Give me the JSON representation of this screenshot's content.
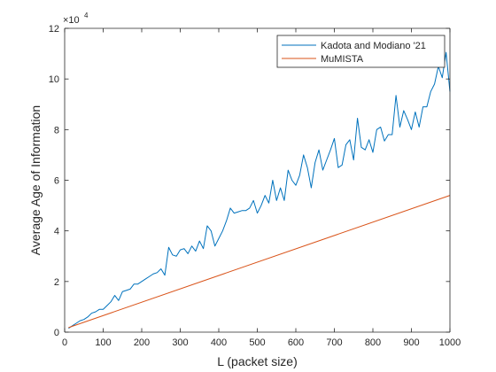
{
  "chart_data": {
    "type": "line",
    "xlabel": "L (packet size)",
    "ylabel": "Average Age of Information",
    "xlim": [
      0,
      1000
    ],
    "ylim": [
      0,
      120000
    ],
    "y_multiplier_label": "×10",
    "y_multiplier_exponent": "4",
    "x_ticks": [
      0,
      100,
      200,
      300,
      400,
      500,
      600,
      700,
      800,
      900,
      1000
    ],
    "y_ticks": [
      0,
      20000,
      40000,
      60000,
      80000,
      100000,
      120000
    ],
    "x_tick_labels": [
      "0",
      "100",
      "200",
      "300",
      "400",
      "500",
      "600",
      "700",
      "800",
      "900",
      "1000"
    ],
    "y_tick_labels": [
      "0",
      "2",
      "4",
      "6",
      "8",
      "10",
      "12"
    ],
    "grid": false,
    "legend_position": "top-right",
    "series": [
      {
        "name": "Kadota and Modiano '21",
        "color": "#0072BD",
        "x": [
          10,
          20,
          30,
          40,
          50,
          60,
          70,
          80,
          90,
          100,
          110,
          120,
          130,
          140,
          150,
          160,
          170,
          180,
          190,
          200,
          210,
          220,
          230,
          240,
          250,
          260,
          270,
          280,
          290,
          300,
          310,
          320,
          330,
          340,
          350,
          360,
          370,
          380,
          390,
          400,
          410,
          420,
          430,
          440,
          450,
          460,
          470,
          480,
          490,
          500,
          510,
          520,
          530,
          540,
          550,
          560,
          570,
          580,
          590,
          600,
          610,
          620,
          630,
          640,
          650,
          660,
          670,
          680,
          690,
          700,
          710,
          720,
          730,
          740,
          750,
          760,
          770,
          780,
          790,
          800,
          810,
          820,
          830,
          840,
          850,
          860,
          870,
          880,
          890,
          900,
          910,
          920,
          930,
          940,
          950,
          960,
          970,
          980,
          990,
          1000
        ],
        "y": [
          1500,
          2500,
          3500,
          4500,
          5000,
          6000,
          7500,
          8000,
          9000,
          9000,
          10500,
          12000,
          14500,
          12500,
          16000,
          16500,
          17000,
          19000,
          19000,
          20000,
          21000,
          22000,
          23000,
          23500,
          25000,
          22500,
          33500,
          30500,
          30000,
          32500,
          33000,
          31000,
          34000,
          32000,
          36000,
          33000,
          42000,
          40000,
          34000,
          37000,
          40000,
          44000,
          49000,
          47000,
          47500,
          48000,
          48000,
          49000,
          52000,
          47000,
          50000,
          54000,
          51000,
          60000,
          52000,
          57000,
          52000,
          64000,
          60000,
          58000,
          62000,
          70000,
          65000,
          57000,
          67000,
          72000,
          64000,
          68000,
          72000,
          76500,
          65000,
          66000,
          74000,
          76000,
          68000,
          84500,
          73000,
          72000,
          76000,
          71000,
          80000,
          81000,
          75500,
          78000,
          78000,
          93500,
          81000,
          87500,
          84000,
          80000,
          87000,
          81000,
          89000,
          89000,
          95000,
          98000,
          105000,
          100500,
          110500,
          95000
        ]
      },
      {
        "name": "MuMISTA",
        "color": "#D95319",
        "x": [
          10,
          1000
        ],
        "y": [
          1800,
          54000
        ]
      }
    ]
  }
}
